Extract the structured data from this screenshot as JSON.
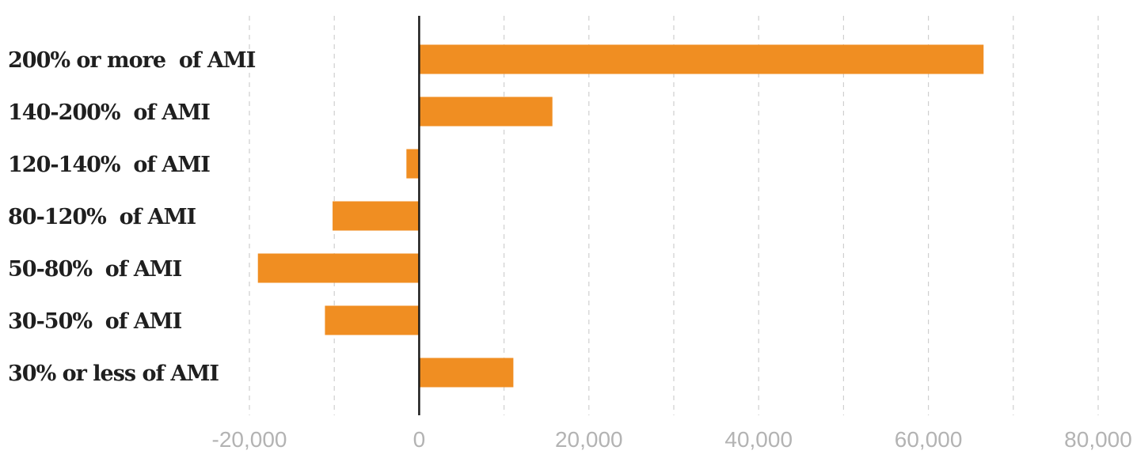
{
  "chart_data": {
    "type": "bar",
    "orientation": "horizontal",
    "categories": [
      "200% or more  of AMI",
      "140-200%  of AMI",
      "120-140%  of AMI",
      "80-120%  of AMI",
      "50-80%  of AMI",
      "30-50%  of AMI",
      "30% or less of AMI"
    ],
    "values": [
      66500,
      15700,
      -1500,
      -10200,
      -19000,
      -11100,
      11100
    ],
    "xlim": [
      -20000,
      80000
    ],
    "xticks": [
      -20000,
      0,
      20000,
      40000,
      60000,
      80000
    ],
    "xtick_labels": [
      "-20,000",
      "0",
      "20,000",
      "40,000",
      "60,000",
      "80,000"
    ],
    "minor_gridlines": [
      -10000,
      10000,
      30000,
      50000,
      70000
    ],
    "grid": true,
    "bar_color": "#F08E22",
    "zero_line_color": "#1a1a1a",
    "title": "",
    "xlabel": "",
    "ylabel": ""
  }
}
